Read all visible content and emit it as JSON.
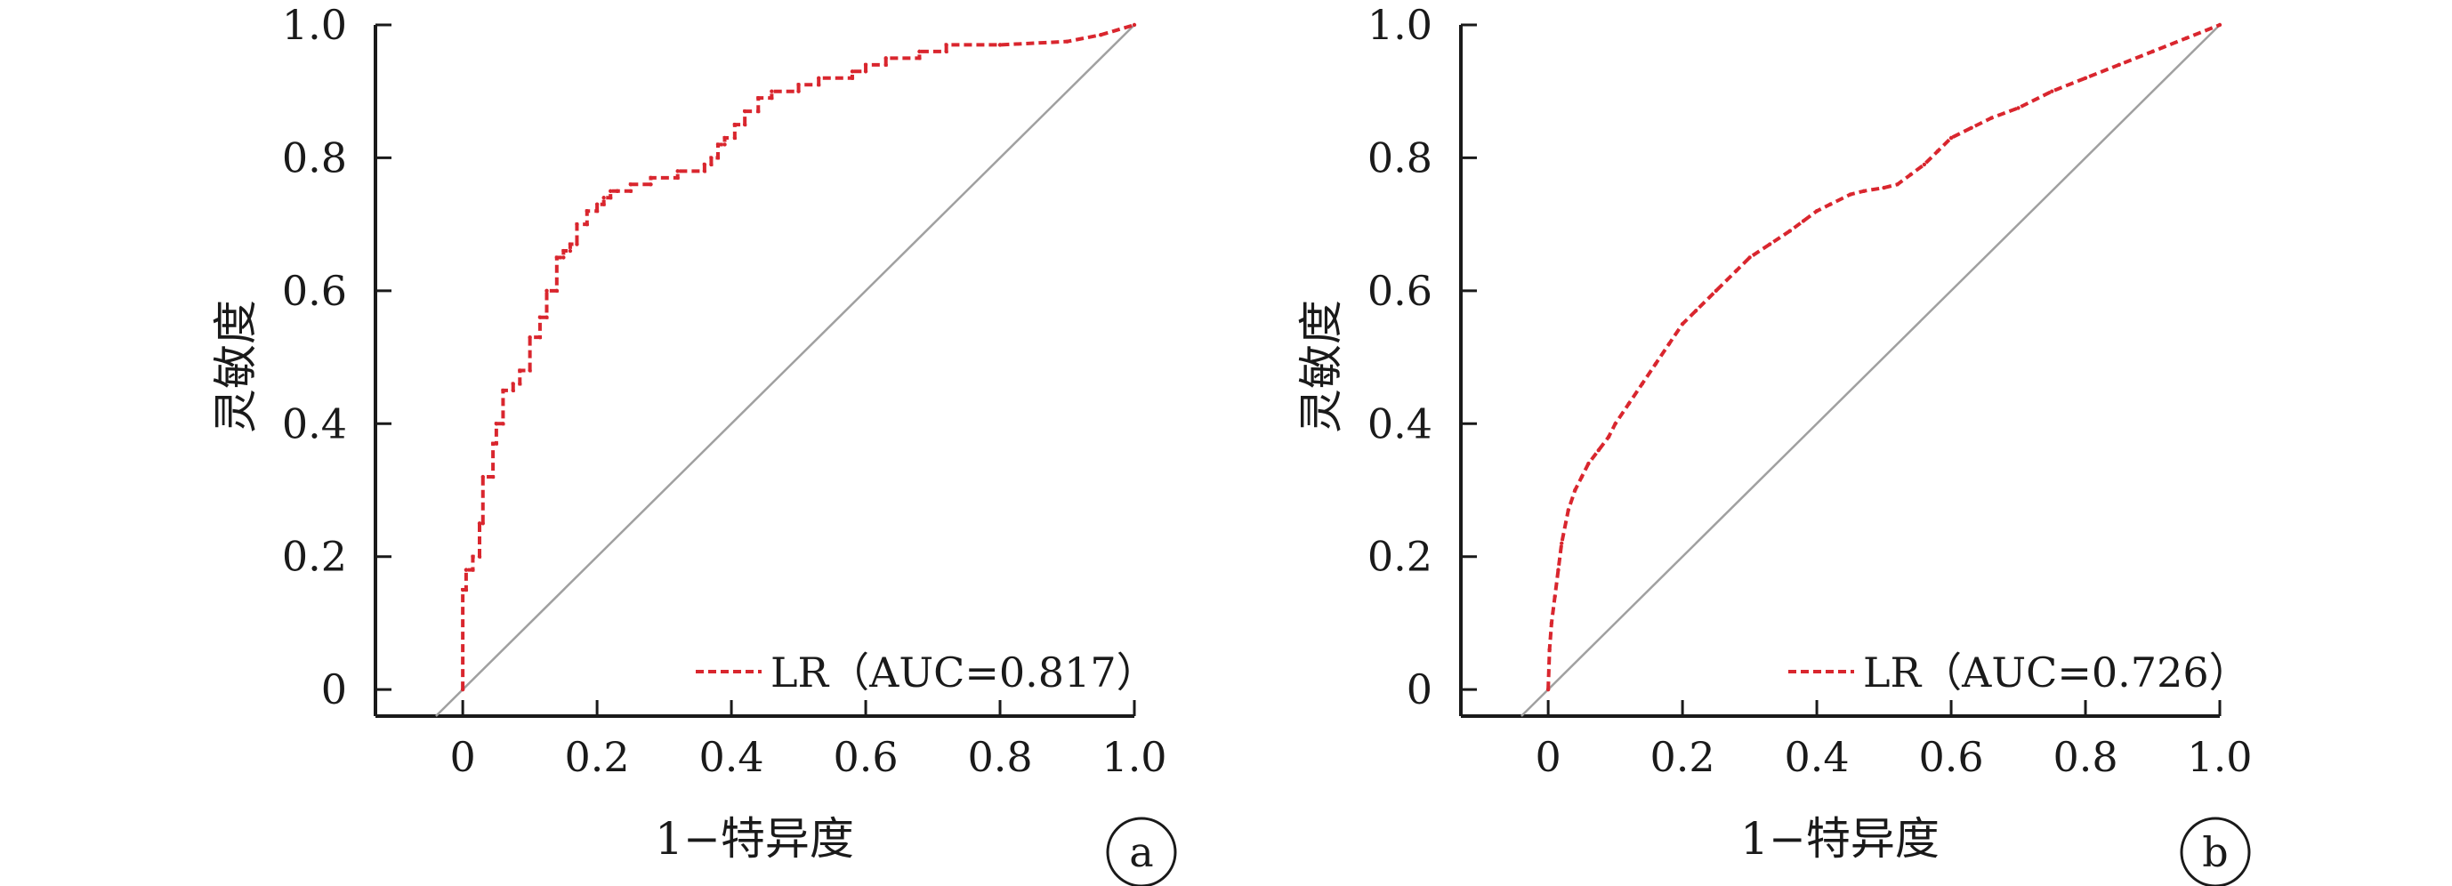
{
  "chart_data": [
    {
      "type": "line",
      "panel": "a",
      "xlabel": "1−特异度",
      "ylabel": "灵敏度",
      "xlim": [
        -0.13,
        1.0
      ],
      "ylim": [
        -0.04,
        1.0
      ],
      "xticks": [
        "0",
        "0.2",
        "0.4",
        "0.6",
        "0.8",
        "1.0"
      ],
      "yticks": [
        "0",
        "0.2",
        "0.4",
        "0.6",
        "0.8",
        "1.0"
      ],
      "grid": false,
      "legend_position": "bottom-right",
      "colors": {
        "roc": "#d9262e",
        "reference": "#a0a0a0",
        "axis": "#1a1a1a"
      },
      "reference_line": {
        "x": [
          -0.04,
          1.0
        ],
        "y": [
          -0.04,
          1.0
        ]
      },
      "series": [
        {
          "name": "LR（AUC=0.817）",
          "x": [
            0,
            0,
            0.005,
            0.005,
            0.015,
            0.015,
            0.025,
            0.025,
            0.03,
            0.03,
            0.045,
            0.045,
            0.05,
            0.05,
            0.06,
            0.06,
            0.075,
            0.075,
            0.085,
            0.085,
            0.1,
            0.1,
            0.115,
            0.115,
            0.125,
            0.125,
            0.14,
            0.14,
            0.15,
            0.15,
            0.16,
            0.16,
            0.17,
            0.17,
            0.185,
            0.185,
            0.2,
            0.2,
            0.21,
            0.21,
            0.22,
            0.22,
            0.23,
            0.23,
            0.25,
            0.25,
            0.28,
            0.28,
            0.32,
            0.32,
            0.36,
            0.36,
            0.37,
            0.37,
            0.38,
            0.38,
            0.39,
            0.39,
            0.405,
            0.405,
            0.42,
            0.42,
            0.44,
            0.44,
            0.46,
            0.46,
            0.5,
            0.5,
            0.53,
            0.53,
            0.58,
            0.58,
            0.6,
            0.6,
            0.63,
            0.63,
            0.68,
            0.68,
            0.72,
            0.72,
            0.8,
            0.8,
            0.9,
            0.95,
            1.0
          ],
          "y": [
            0,
            0.15,
            0.15,
            0.18,
            0.18,
            0.2,
            0.2,
            0.25,
            0.25,
            0.32,
            0.32,
            0.37,
            0.37,
            0.4,
            0.4,
            0.45,
            0.45,
            0.46,
            0.46,
            0.48,
            0.48,
            0.53,
            0.53,
            0.56,
            0.56,
            0.6,
            0.6,
            0.65,
            0.65,
            0.66,
            0.66,
            0.67,
            0.67,
            0.7,
            0.7,
            0.72,
            0.72,
            0.73,
            0.73,
            0.74,
            0.74,
            0.75,
            0.75,
            0.75,
            0.75,
            0.76,
            0.76,
            0.77,
            0.77,
            0.78,
            0.78,
            0.79,
            0.79,
            0.8,
            0.8,
            0.82,
            0.82,
            0.83,
            0.83,
            0.85,
            0.85,
            0.87,
            0.87,
            0.89,
            0.89,
            0.9,
            0.9,
            0.91,
            0.91,
            0.92,
            0.92,
            0.93,
            0.93,
            0.94,
            0.94,
            0.95,
            0.95,
            0.96,
            0.96,
            0.97,
            0.97,
            0.97,
            0.975,
            0.985,
            1.0
          ]
        }
      ]
    },
    {
      "type": "line",
      "panel": "b",
      "xlabel": "1−特异度",
      "ylabel": "灵敏度",
      "xlim": [
        -0.13,
        1.0
      ],
      "ylim": [
        -0.04,
        1.0
      ],
      "xticks": [
        "0",
        "0.2",
        "0.4",
        "0.6",
        "0.8",
        "1.0"
      ],
      "yticks": [
        "0",
        "0.2",
        "0.4",
        "0.6",
        "0.8",
        "1.0"
      ],
      "grid": false,
      "legend_position": "bottom-right",
      "colors": {
        "roc": "#d9262e",
        "reference": "#a0a0a0",
        "axis": "#1a1a1a"
      },
      "reference_line": {
        "x": [
          -0.04,
          1.0
        ],
        "y": [
          -0.04,
          1.0
        ]
      },
      "series": [
        {
          "name": "LR（AUC=0.726）",
          "x": [
            0,
            0.002,
            0.005,
            0.01,
            0.015,
            0.02,
            0.03,
            0.04,
            0.05,
            0.06,
            0.075,
            0.09,
            0.1,
            0.12,
            0.14,
            0.16,
            0.18,
            0.2,
            0.22,
            0.25,
            0.28,
            0.3,
            0.33,
            0.36,
            0.38,
            0.4,
            0.42,
            0.45,
            0.47,
            0.5,
            0.52,
            0.54,
            0.56,
            0.58,
            0.6,
            0.63,
            0.66,
            0.7,
            0.75,
            0.8,
            0.85,
            0.9,
            0.95,
            1.0
          ],
          "y": [
            0,
            0.06,
            0.1,
            0.14,
            0.18,
            0.22,
            0.27,
            0.3,
            0.32,
            0.34,
            0.36,
            0.38,
            0.4,
            0.43,
            0.46,
            0.49,
            0.52,
            0.55,
            0.57,
            0.6,
            0.63,
            0.65,
            0.67,
            0.69,
            0.705,
            0.72,
            0.73,
            0.745,
            0.75,
            0.755,
            0.76,
            0.775,
            0.79,
            0.81,
            0.83,
            0.845,
            0.86,
            0.875,
            0.9,
            0.92,
            0.94,
            0.96,
            0.98,
            1.0
          ]
        }
      ]
    }
  ]
}
